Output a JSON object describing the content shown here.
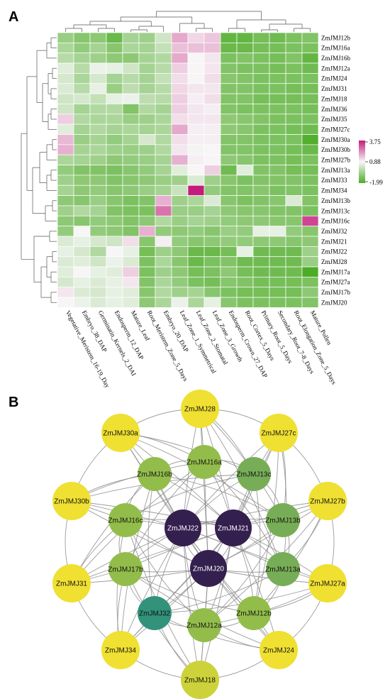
{
  "panel_a": {
    "letter": "A",
    "columns": [
      "Vegetative_Meristem_16-19_Day",
      "Embryo_38_DAP",
      "Germinatin_Kernels_2_DAI",
      "Endosperm_12_DAP",
      "Mature_Leaf",
      "Root_Meristem_Zone_5_Days",
      "Embryo_20_DAP",
      "Leaf_Zone_1_Symmetrical",
      "Leaf_Zone_2_Stomatal",
      "Leaf_Zone_3_Growth",
      "Endosperm_Crown_27_DAP",
      "Root_Cortex_5_Days",
      "Primary_Root_5_Days",
      "Secondary_Root_7-8_Days",
      "Root_Elongation_Zone_5_Days",
      "Mature_Pollen"
    ],
    "rows": [
      "ZmJMJ12b",
      "ZmJMJ16a",
      "ZmJMJ16b",
      "ZmJMJ12a",
      "ZmJMJ24",
      "ZmJMJ31",
      "ZmJMJ18",
      "ZmJMJ36",
      "ZmJMJ35",
      "ZmJMJ27c",
      "ZmJMJ30a",
      "ZmJMJ30b",
      "ZmJMJ27b",
      "ZmJMJ13a",
      "ZmJMJ33",
      "ZmJMJ34",
      "ZmJMJ13b",
      "ZmJMJ13c",
      "ZmJMJ16c",
      "ZmJMJ32",
      "ZmJMJ21",
      "ZmJMJ22",
      "ZmJMJ28",
      "ZmJMJ17a",
      "ZmJMJ27a",
      "ZmJMJ17b",
      "ZmJMJ20"
    ],
    "values": [
      [
        -0.7,
        -1.0,
        -0.9,
        -1.5,
        -0.5,
        -0.6,
        0.2,
        1.9,
        1.3,
        1.5,
        -1.6,
        -1.6,
        -1.3,
        -1.4,
        -1.2,
        -1.1
      ],
      [
        -0.4,
        -0.8,
        -0.5,
        -1.0,
        -0.4,
        -0.5,
        0.0,
        1.6,
        1.6,
        1.6,
        -1.5,
        -1.5,
        -1.3,
        -1.3,
        -1.2,
        -1.2
      ],
      [
        -0.2,
        -0.5,
        -0.6,
        -0.9,
        -0.9,
        -0.5,
        -0.3,
        1.9,
        0.9,
        1.1,
        -1.2,
        -1.1,
        -1.2,
        -1.3,
        -1.1,
        -1.6
      ],
      [
        0.5,
        -0.2,
        0.7,
        0.6,
        0.2,
        -0.5,
        -0.2,
        1.4,
        0.9,
        1.1,
        -1.1,
        -1.2,
        -1.2,
        -1.3,
        -1.2,
        -1.4
      ],
      [
        0.3,
        -0.4,
        0.3,
        -0.5,
        -0.2,
        -0.5,
        0.0,
        1.2,
        0.9,
        1.2,
        -1.0,
        -1.1,
        -1.2,
        -1.2,
        -1.2,
        -1.2
      ],
      [
        0.4,
        -0.2,
        0.6,
        -0.7,
        -0.1,
        -0.5,
        -0.2,
        1.3,
        1.1,
        1.1,
        -1.1,
        -1.1,
        -1.2,
        -1.2,
        -1.3,
        -1.3
      ],
      [
        0.2,
        0.3,
        0.0,
        0.6,
        0.7,
        -0.1,
        -0.2,
        1.4,
        1.0,
        1.2,
        -1.1,
        -1.1,
        -1.3,
        -1.3,
        -1.3,
        -1.3
      ],
      [
        0.2,
        -0.5,
        -0.3,
        -0.3,
        -1.1,
        -0.3,
        -0.5,
        1.4,
        1.1,
        1.0,
        -1.1,
        -1.2,
        -1.2,
        -1.2,
        -1.2,
        -1.3
      ],
      [
        1.4,
        -0.3,
        -0.4,
        -0.4,
        -0.7,
        -0.6,
        -0.4,
        1.2,
        1.1,
        1.1,
        -0.9,
        -1.0,
        -1.1,
        -1.2,
        -1.2,
        -1.2
      ],
      [
        0.5,
        -0.5,
        -0.3,
        -0.5,
        -0.4,
        -0.5,
        -0.4,
        1.9,
        1.0,
        1.0,
        -0.9,
        -1.0,
        -1.2,
        -1.2,
        -1.3,
        -1.4
      ],
      [
        1.7,
        -0.7,
        -0.5,
        -0.8,
        -0.5,
        0.3,
        -0.3,
        1.2,
        1.0,
        1.0,
        -1.1,
        -1.1,
        -1.2,
        -1.2,
        -1.2,
        -1.9
      ],
      [
        1.8,
        -0.5,
        -0.4,
        -0.6,
        -0.7,
        -0.6,
        -0.3,
        1.1,
        0.8,
        0.9,
        -1.1,
        -1.1,
        -1.2,
        -1.2,
        -1.3,
        -1.5
      ],
      [
        -0.4,
        -0.5,
        -0.6,
        -0.9,
        -0.8,
        -0.7,
        -0.5,
        1.8,
        1.0,
        0.9,
        -0.9,
        -1.0,
        -1.2,
        -1.2,
        -1.3,
        -1.2
      ],
      [
        -0.8,
        -1.1,
        -1.1,
        -1.2,
        -1.0,
        -0.8,
        -0.5,
        0.5,
        0.9,
        1.4,
        -1.4,
        0.5,
        -1.1,
        -1.1,
        -1.3,
        -1.3
      ],
      [
        -0.6,
        -0.9,
        -0.9,
        -1.1,
        -1.0,
        -0.9,
        -0.7,
        -0.6,
        0.4,
        -0.6,
        -1.0,
        -1.2,
        -1.1,
        -1.1,
        -1.1,
        -1.2
      ],
      [
        -0.5,
        -0.9,
        -0.8,
        -1.0,
        -0.9,
        -0.7,
        -0.5,
        0.1,
        3.75,
        -0.8,
        -1.1,
        -1.1,
        -1.0,
        -1.2,
        -1.1,
        -1.2
      ],
      [
        -0.9,
        -1.0,
        -0.7,
        -1.0,
        -1.2,
        -1.1,
        1.8,
        -0.6,
        -0.4,
        0.4,
        -1.0,
        -1.2,
        -1.1,
        -1.0,
        0.4,
        -1.1
      ],
      [
        -0.6,
        -0.3,
        -0.5,
        -1.1,
        -1.2,
        -1.2,
        2.6,
        -0.7,
        -0.7,
        -0.5,
        -0.9,
        -1.0,
        -1.0,
        -1.1,
        -1.1,
        -1.2
      ],
      [
        -0.9,
        -1.0,
        -0.8,
        -0.9,
        -1.1,
        -0.9,
        -0.3,
        -0.7,
        -0.5,
        -0.6,
        -0.8,
        -0.9,
        -0.9,
        -1.0,
        -1.0,
        3.2
      ],
      [
        -0.8,
        0.9,
        -0.8,
        -0.9,
        -1.1,
        1.8,
        -0.8,
        -0.9,
        -0.8,
        -1.0,
        -0.7,
        -0.8,
        0.6,
        0.6,
        -0.8,
        -1.0
      ],
      [
        0.4,
        0.6,
        0.3,
        0.2,
        1.2,
        -1.0,
        1.0,
        -0.8,
        -1.0,
        -0.9,
        -0.8,
        -0.8,
        -0.9,
        -0.9,
        -1.0,
        -0.9
      ],
      [
        0.6,
        0.3,
        -0.3,
        0.9,
        0.6,
        -1.3,
        -0.6,
        -0.9,
        -1.5,
        -1.5,
        -1.3,
        0.6,
        -1.4,
        -1.4,
        -1.4,
        -0.6
      ],
      [
        0.4,
        0.5,
        0.2,
        0.7,
        0.4,
        -1.2,
        -0.4,
        -1.0,
        -1.5,
        -1.2,
        -1.1,
        -1.4,
        -1.4,
        -1.4,
        -1.4,
        -0.7
      ],
      [
        0.5,
        0.9,
        0.6,
        0.5,
        1.4,
        -1.2,
        -0.6,
        -0.9,
        -1.3,
        -1.2,
        -0.9,
        -1.3,
        -1.4,
        -1.4,
        -1.4,
        -1.99
      ],
      [
        0.3,
        0.6,
        0.4,
        0.6,
        1.1,
        -1.1,
        -0.4,
        -0.8,
        -1.2,
        -1.3,
        -1.0,
        -1.1,
        -1.3,
        -1.3,
        -1.3,
        -1.2
      ],
      [
        1.1,
        0.4,
        0.3,
        0.6,
        0.5,
        -1.0,
        -0.3,
        -0.6,
        -0.5,
        -1.0,
        -1.2,
        -1.3,
        -1.3,
        -1.3,
        -1.3,
        -0.9
      ],
      [
        0.9,
        0.7,
        0.4,
        0.6,
        0.5,
        -0.9,
        -0.4,
        0.7,
        -0.4,
        0.6,
        -1.0,
        -1.2,
        -1.2,
        -1.2,
        -1.2,
        -1.1
      ]
    ],
    "colorbar": {
      "max_label": "3.75",
      "mid_label": "0.88",
      "min_label": "-1.99",
      "max": 3.75,
      "mid": 0.88,
      "min": -1.99,
      "high_color": "#c51b7d",
      "mid_color": "#f7f7f7",
      "low_color": "#4dac26"
    }
  },
  "panel_b": {
    "letter": "B",
    "nodes": [
      {
        "id": "ZmJMJ28",
        "label": "ZmJMJ28",
        "kind": "outer"
      },
      {
        "id": "ZmJMJ27c",
        "label": "ZmJMJ27c",
        "kind": "outer"
      },
      {
        "id": "ZmJMJ27b",
        "label": "ZmJMJ27b",
        "kind": "outer"
      },
      {
        "id": "ZmJMJ27a",
        "label": "ZmJMJ27a",
        "kind": "outer"
      },
      {
        "id": "ZmJMJ24",
        "label": "ZmJMJ24",
        "kind": "outer"
      },
      {
        "id": "ZmJMJ18",
        "label": "ZmJMJ18",
        "kind": "outer2"
      },
      {
        "id": "ZmJMJ34",
        "label": "ZmJMJ34",
        "kind": "outer"
      },
      {
        "id": "ZmJMJ31",
        "label": "ZmJMJ31",
        "kind": "outer"
      },
      {
        "id": "ZmJMJ30b",
        "label": "ZmJMJ30b",
        "kind": "outer"
      },
      {
        "id": "ZmJMJ30a",
        "label": "ZmJMJ30a",
        "kind": "outer"
      },
      {
        "id": "ZmJMJ16a",
        "label": "ZmJMJ16a",
        "kind": "mid"
      },
      {
        "id": "ZmJMJ13c",
        "label": "ZmJMJ13c",
        "kind": "mid2"
      },
      {
        "id": "ZmJMJ13b",
        "label": "ZmJMJ13b",
        "kind": "mid2"
      },
      {
        "id": "ZmJMJ13a",
        "label": "ZmJMJ13a",
        "kind": "mid2"
      },
      {
        "id": "ZmJMJ12b",
        "label": "ZmJMJ12b",
        "kind": "mid"
      },
      {
        "id": "ZmJMJ12a",
        "label": "ZmJMJ12a",
        "kind": "mid"
      },
      {
        "id": "ZmJMJ32",
        "label": "ZmJMJ32",
        "kind": "teal"
      },
      {
        "id": "ZmJMJ17b",
        "label": "ZmJMJ17b",
        "kind": "mid"
      },
      {
        "id": "ZmJMJ16c",
        "label": "ZmJMJ16c",
        "kind": "mid"
      },
      {
        "id": "ZmJMJ16b",
        "label": "ZmJMJ16b",
        "kind": "mid"
      },
      {
        "id": "ZmJMJ22",
        "label": "ZmJMJ22",
        "kind": "hub"
      },
      {
        "id": "ZmJMJ21",
        "label": "ZmJMJ21",
        "kind": "hub"
      },
      {
        "id": "ZmJMJ20",
        "label": "ZmJMJ20",
        "kind": "hub"
      }
    ],
    "colors": {
      "outer": "#efe032",
      "outer2": "#cdd23a",
      "mid": "#93bd4b",
      "mid2": "#77ad57",
      "teal": "#32927a",
      "hub": "#34204e",
      "edge": "#8a8a8a"
    }
  }
}
